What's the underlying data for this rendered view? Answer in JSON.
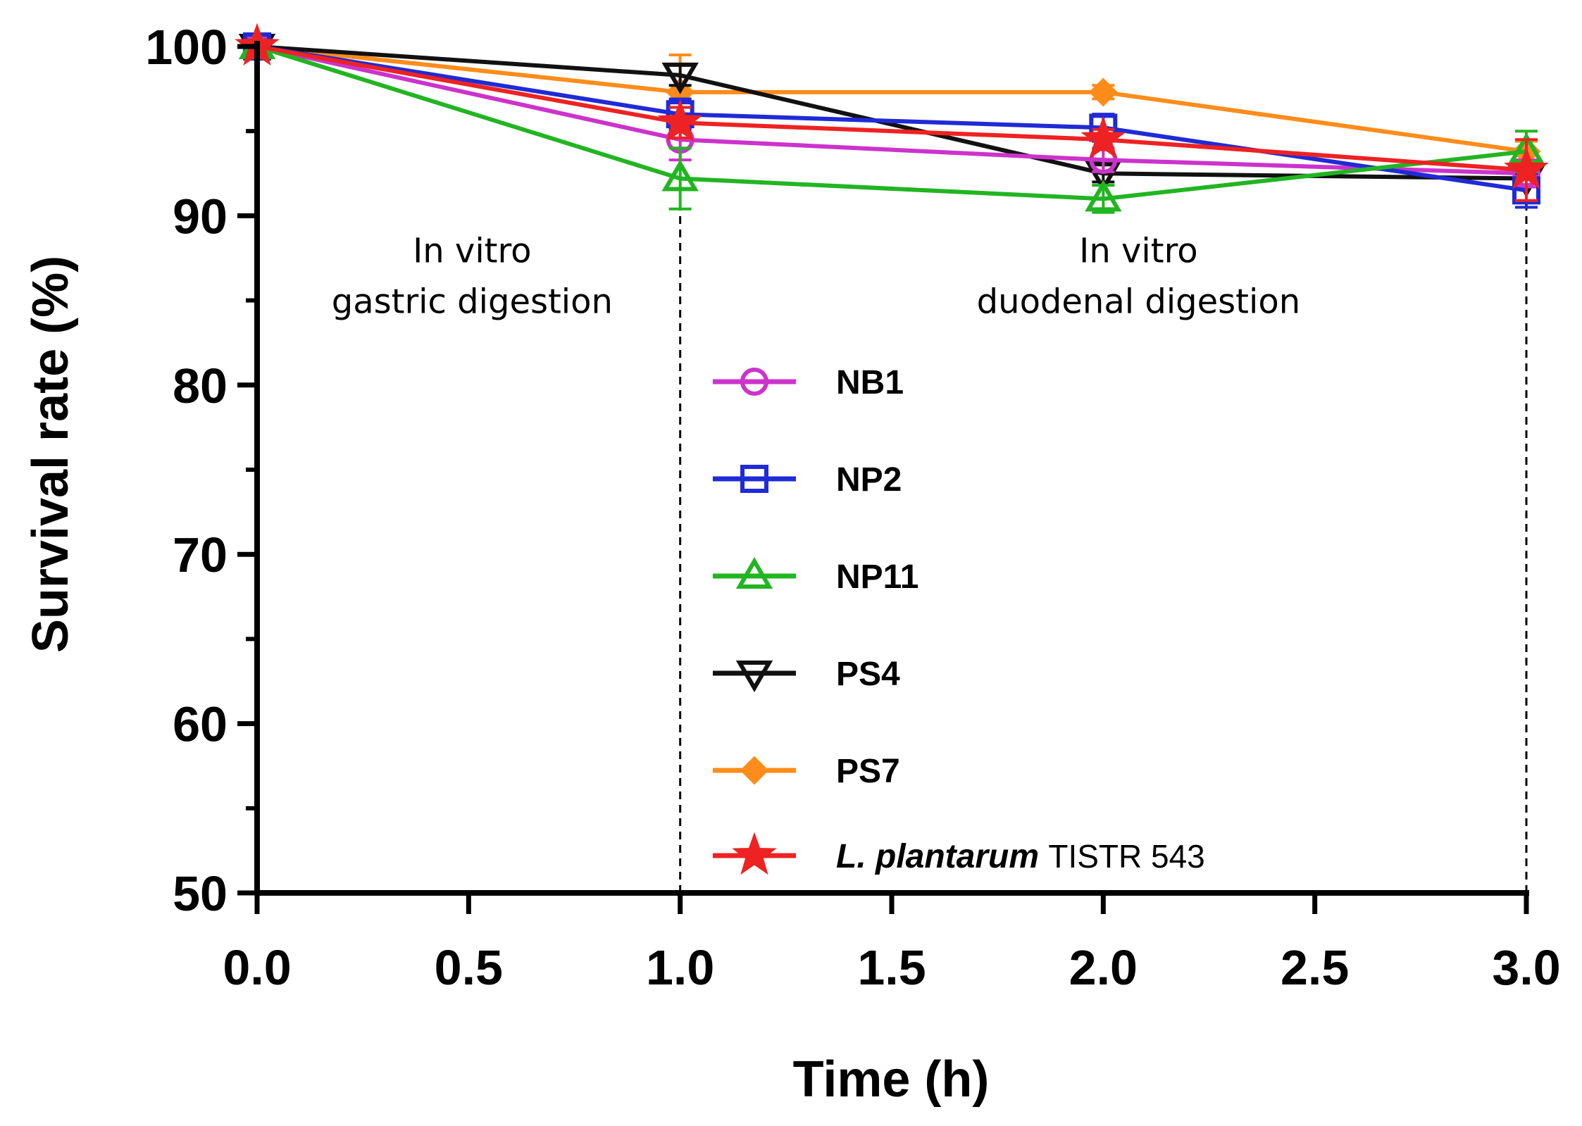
{
  "chart_data": {
    "type": "line",
    "xlabel": "Time (h)",
    "ylabel": "Survival rate (%)",
    "xlim": [
      0,
      3
    ],
    "ylim": [
      50,
      100
    ],
    "xticks": [
      "0.0",
      "0.5",
      "1.0",
      "1.5",
      "2.0",
      "2.5",
      "3.0"
    ],
    "yticks": [
      "50",
      "60",
      "70",
      "80",
      "90",
      "100"
    ],
    "x": [
      0,
      1,
      2,
      3
    ],
    "phase_boundaries": [
      1,
      3
    ],
    "annotations": [
      {
        "lines": [
          "In vitro",
          "gastric digestion"
        ],
        "x": 0.5,
        "y": 89
      },
      {
        "lines": [
          "In vitro",
          "duodenal digestion"
        ],
        "x": 2.1,
        "y": 89
      }
    ],
    "series": [
      {
        "name": "NB1",
        "name_italic": "",
        "name_rest": "",
        "color": "#cc33cc",
        "marker": "circle",
        "values": [
          100,
          94.5,
          93.3,
          92.5
        ],
        "errors": [
          0.2,
          1.2,
          0.7,
          0.8
        ]
      },
      {
        "name": "NP2",
        "name_italic": "",
        "name_rest": "",
        "color": "#1f2bd6",
        "marker": "square",
        "values": [
          100,
          96,
          95.2,
          91.5
        ],
        "errors": [
          0.2,
          0.9,
          0.8,
          1.0
        ]
      },
      {
        "name": "NP11",
        "name_italic": "",
        "name_rest": "",
        "color": "#22b522",
        "marker": "triangle-up",
        "values": [
          100,
          92.2,
          91,
          93.8
        ],
        "errors": [
          0.2,
          1.8,
          0.8,
          1.2
        ]
      },
      {
        "name": "PS4",
        "name_italic": "",
        "name_rest": "",
        "color": "#111111",
        "marker": "triangle-down",
        "values": [
          100,
          98.3,
          92.5,
          92.2
        ],
        "errors": [
          0.2,
          0.6,
          0.5,
          0.5
        ]
      },
      {
        "name": "PS7",
        "name_italic": "",
        "name_rest": "",
        "color": "#ff8c1a",
        "marker": "diamond",
        "values": [
          100,
          97.3,
          97.3,
          93.8
        ],
        "errors": [
          0.2,
          2.2,
          0.4,
          0.6
        ]
      },
      {
        "name": "",
        "name_italic": "L. plantarum",
        "name_rest": "TISTR 543",
        "color": "#ee2222",
        "marker": "star",
        "values": [
          100,
          95.5,
          94.5,
          92.7
        ],
        "errors": [
          0.2,
          0.9,
          0.6,
          1.8
        ]
      }
    ]
  }
}
